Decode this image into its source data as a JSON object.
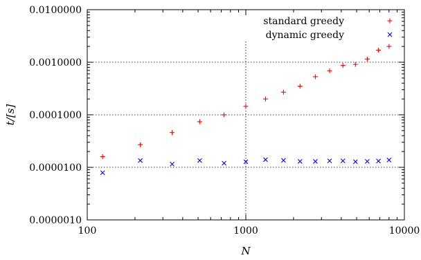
{
  "chart_data": {
    "type": "scatter",
    "xlabel": "N",
    "ylabel": "t/[s]",
    "xscale": "log",
    "yscale": "log",
    "xlim": [
      100,
      10000
    ],
    "ylim": [
      1e-06,
      0.01
    ],
    "x_ticks": [
      {
        "value": 100,
        "label": "100"
      },
      {
        "value": 1000,
        "label": "1000"
      },
      {
        "value": 10000,
        "label": "10000"
      }
    ],
    "y_ticks": [
      {
        "value": 1e-06,
        "label": "0.0000010"
      },
      {
        "value": 1e-05,
        "label": "0.0000100"
      },
      {
        "value": 0.0001,
        "label": "0.0001000"
      },
      {
        "value": 0.001,
        "label": "0.0010000"
      },
      {
        "value": 0.01,
        "label": "0.0100000"
      }
    ],
    "grid": "dotted lines at y = 0.00001, 0.0001, 0.001 and x = 1000",
    "legend_position": "top-right",
    "series": [
      {
        "name": "standard greedy",
        "marker": "plus",
        "color": "#ff0000",
        "x": [
          125,
          216,
          343,
          512,
          729,
          1000,
          1331,
          1728,
          2197,
          2744,
          3375,
          4096,
          4913,
          5832,
          6859,
          8000
        ],
        "y": [
          1.6e-05,
          2.7e-05,
          4.6e-05,
          7.4e-05,
          0.0001,
          0.000145,
          0.0002,
          0.00027,
          0.00035,
          0.00053,
          0.00069,
          0.00087,
          0.00091,
          0.00115,
          0.0017,
          0.002
        ]
      },
      {
        "name": "dynamic greedy",
        "marker": "x",
        "color": "#0000ff",
        "x": [
          125,
          216,
          343,
          512,
          729,
          1000,
          1331,
          1728,
          2197,
          2744,
          3375,
          4096,
          4913,
          5832,
          6859,
          8000
        ],
        "y": [
          7.9e-06,
          1.35e-05,
          1.15e-05,
          1.35e-05,
          1.2e-05,
          1.28e-05,
          1.4e-05,
          1.36e-05,
          1.3e-05,
          1.3e-05,
          1.33e-05,
          1.33e-05,
          1.28e-05,
          1.3e-05,
          1.32e-05,
          1.38e-05
        ]
      }
    ]
  }
}
